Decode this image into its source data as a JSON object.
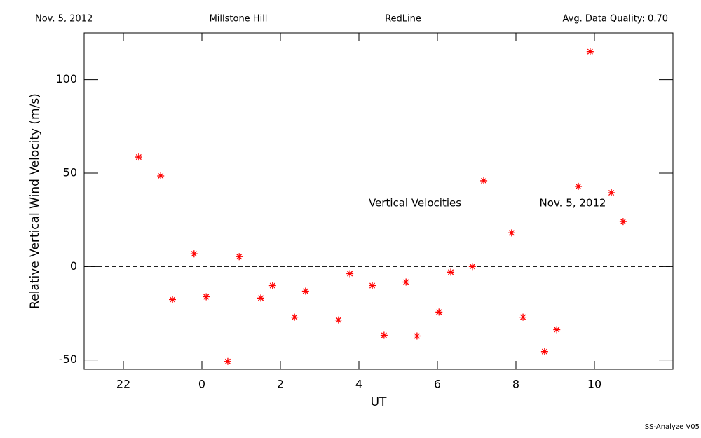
{
  "chart_data": {
    "type": "scatter",
    "header": [
      "Nov. 5, 2012",
      "Millstone Hill",
      "RedLine",
      "Avg. Data Quality: 0.70"
    ],
    "annotations": [
      "Vertical Velocities",
      "Nov. 5, 2012"
    ],
    "footer": "SS-Analyze V05",
    "x_label": "UT",
    "y_label": "Relative Vertical Wind Velocity (m/s)",
    "xlim": [
      21,
      36
    ],
    "xticks": [
      22,
      {
        "value": 24,
        "label": "0"
      },
      {
        "value": 26,
        "label": "2"
      },
      {
        "value": 28,
        "label": "4"
      },
      {
        "value": 30,
        "label": "6"
      },
      {
        "value": 32,
        "label": "8"
      },
      {
        "value": 34,
        "label": "10"
      }
    ],
    "ylim": [
      -55,
      125
    ],
    "yticks": [
      -50,
      0,
      50,
      100
    ],
    "reference_line": 0,
    "color": "#ff0000",
    "x": [
      22.39,
      22.95,
      23.25,
      23.8,
      24.11,
      24.66,
      24.95,
      25.5,
      25.8,
      26.36,
      26.64,
      27.48,
      27.77,
      28.34,
      28.64,
      29.2,
      29.48,
      30.04,
      30.34,
      30.89,
      31.18,
      31.89,
      32.18,
      32.73,
      33.04,
      33.59,
      33.89,
      34.43,
      34.73
    ],
    "values": [
      58.6,
      48.5,
      -17.7,
      6.8,
      -16.2,
      -50.8,
      5.3,
      -16.9,
      -10.2,
      -27.1,
      -13.2,
      -28.6,
      -3.8,
      -10.2,
      -36.8,
      -8.3,
      -37.2,
      -24.4,
      -3.0,
      0,
      45.9,
      18.0,
      -27.1,
      -45.5,
      -33.8,
      42.9,
      115.0,
      39.5,
      24.1
    ]
  }
}
